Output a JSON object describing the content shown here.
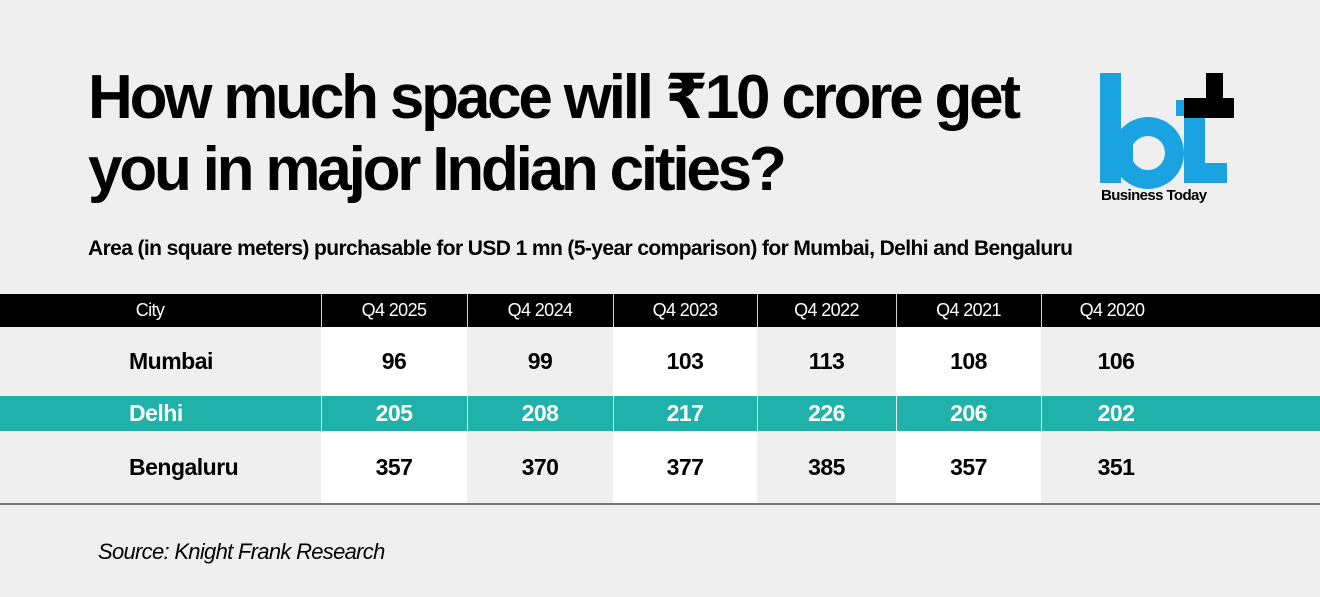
{
  "title": "How much space will  ₹10 crore get you in major Indian cities?",
  "subtitle": "Area (in square meters) purchasable for USD 1 mn (5-year comparison) for Mumbai, Delhi and Bengaluru",
  "brand": {
    "logo_letters": "bt",
    "name": "Business Today",
    "logo_color": "#1aa3e0",
    "accent_color": "#000000"
  },
  "colors": {
    "background": "#efefef",
    "header_bg": "#000000",
    "highlight_row": "#20b2aa",
    "alt_column": "#ffffff"
  },
  "table": {
    "headers": [
      "City",
      "Q4 2025",
      "Q4 2024",
      "Q4 2023",
      "Q4 2022",
      "Q4 2021",
      "Q4 2020"
    ],
    "rows": [
      {
        "city": "Mumbai",
        "values": [
          "96",
          "99",
          "103",
          "113",
          "108",
          "106"
        ]
      },
      {
        "city": "Delhi",
        "values": [
          "205",
          "208",
          "217",
          "226",
          "206",
          "202"
        ],
        "highlighted": true
      },
      {
        "city": "Bengaluru",
        "values": [
          "357",
          "370",
          "377",
          "385",
          "357",
          "351"
        ]
      }
    ]
  },
  "source": "Source: Knight Frank Research",
  "chart_data": {
    "type": "table",
    "title": "How much space will ₹10 crore get you in major Indian cities?",
    "subtitle": "Area (in square meters) purchasable for USD 1 mn (5-year comparison) for Mumbai, Delhi and Bengaluru",
    "unit": "square meters",
    "categories": [
      "Q4 2025",
      "Q4 2024",
      "Q4 2023",
      "Q4 2022",
      "Q4 2021",
      "Q4 2020"
    ],
    "series": [
      {
        "name": "Mumbai",
        "values": [
          96,
          99,
          103,
          113,
          108,
          106
        ]
      },
      {
        "name": "Delhi",
        "values": [
          205,
          208,
          217,
          226,
          206,
          202
        ]
      },
      {
        "name": "Bengaluru",
        "values": [
          357,
          370,
          377,
          385,
          357,
          351
        ]
      }
    ],
    "source": "Source: Knight Frank Research"
  }
}
